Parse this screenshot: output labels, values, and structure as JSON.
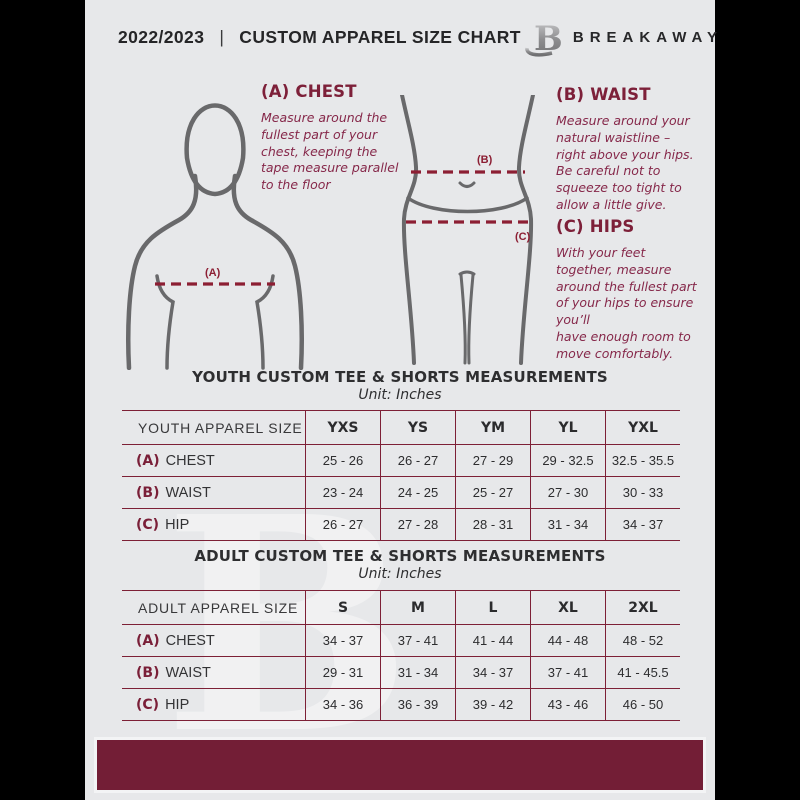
{
  "header": {
    "season": "2022/2023",
    "divider": "|",
    "title": "CUSTOM APPAREL SIZE CHART",
    "brand": "BREAKAWAY",
    "logo_letter": "B"
  },
  "watermark_letter": "B",
  "measure_guides": [
    {
      "heading": "(A) CHEST",
      "marker": "(A)",
      "body": "Measure around the\nfullest part of your\nchest, keeping the\ntape measure parallel\nto the floor"
    },
    {
      "heading": "(B) WAIST",
      "marker": "(B)",
      "body": "Measure around your\nnatural waistline –\nright above your hips.\nBe careful not to\nsqueeze too tight to\nallow a little give."
    },
    {
      "heading": "(C) HIPS",
      "marker": "(C)",
      "body": "With your feet\ntogether, measure\naround the fullest part\nof your hips to ensure\nyou’ll\nhave enough room to\nmove comfortably."
    }
  ],
  "youth_table": {
    "title": "YOUTH CUSTOM TEE & SHORTS MEASUREMENTS",
    "unit": "Unit: Inches",
    "corner_header": "YOUTH APPAREL SIZE",
    "size_columns": [
      "YXS",
      "YS",
      "YM",
      "YL",
      "YXL"
    ],
    "rows": [
      {
        "key": "(A)",
        "label": "CHEST",
        "values": [
          "25 - 26",
          "26 - 27",
          "27 - 29",
          "29 - 32.5",
          "32.5 - 35.5"
        ]
      },
      {
        "key": "(B)",
        "label": "WAIST",
        "values": [
          "23 - 24",
          "24 - 25",
          "25 - 27",
          "27 - 30",
          "30 - 33"
        ]
      },
      {
        "key": "(C)",
        "label": "HIP",
        "values": [
          "26 - 27",
          "27 - 28",
          "28 - 31",
          "31 - 34",
          "34 - 37"
        ]
      }
    ]
  },
  "adult_table": {
    "title": "ADULT CUSTOM TEE & SHORTS MEASUREMENTS",
    "unit": "Unit: Inches",
    "corner_header": "ADULT APPAREL SIZE",
    "size_columns": [
      "S",
      "M",
      "L",
      "XL",
      "2XL"
    ],
    "rows": [
      {
        "key": "(A)",
        "label": "CHEST",
        "values": [
          "34 - 37",
          "37 - 41",
          "41 - 44",
          "44 - 48",
          "48 - 52"
        ]
      },
      {
        "key": "(B)",
        "label": "WAIST",
        "values": [
          "29 - 31",
          "31 - 34",
          "34 - 37",
          "37 - 41",
          "41 - 45.5"
        ]
      },
      {
        "key": "(C)",
        "label": "HIP",
        "values": [
          "34 - 36",
          "36 - 39",
          "39 - 42",
          "43 - 46",
          "46 - 50"
        ]
      }
    ]
  },
  "colors": {
    "maroon": "#7a1f38",
    "dash_maroon": "#8c1e33",
    "table_border": "#7d2036",
    "footer_maroon": "#731e36",
    "page_bg": "#e7e8ea",
    "letterbox": "#000000",
    "text_dark": "#2f3032",
    "diagram_gray": "#69696b"
  }
}
